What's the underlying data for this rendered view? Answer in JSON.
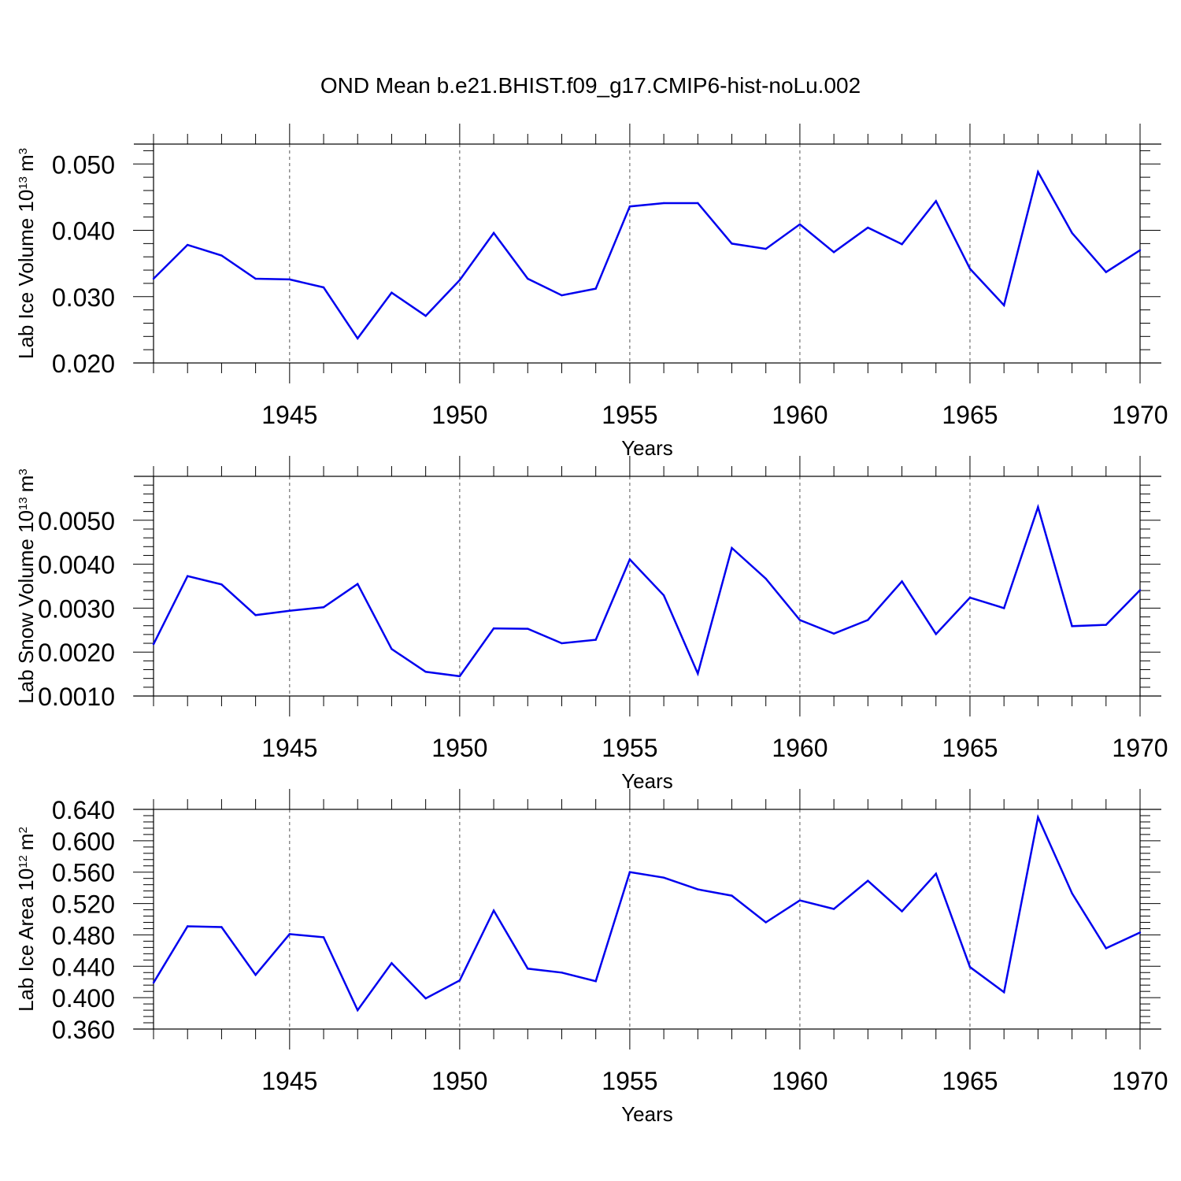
{
  "title": "OND Mean b.e21.BHIST.f09_g17.CMIP6-hist-noLu.002",
  "colors": {
    "line": "#0000ee",
    "axis": "#000000",
    "grid": "#555555",
    "background": "#ffffff"
  },
  "chart_data": [
    {
      "type": "line",
      "ylabel": "Lab Ice Volume 10",
      "ylabel_exp": "13",
      "ylabel_unit": "m",
      "ylabel_unit_exp": "3",
      "xlabel": "Years",
      "xlim": [
        1941,
        1970
      ],
      "ylim": [
        0.02,
        0.053
      ],
      "yticks": [
        "0.020",
        "0.030",
        "0.040",
        "0.050"
      ],
      "yticks_values": [
        0.02,
        0.03,
        0.04,
        0.05
      ],
      "xticks": [
        "1945",
        "1950",
        "1955",
        "1960",
        "1965",
        "1970"
      ],
      "xticks_values": [
        1945,
        1950,
        1955,
        1960,
        1965,
        1970
      ],
      "grid": "dashed vertical at 5-year ticks",
      "x": [
        1941,
        1942,
        1943,
        1944,
        1945,
        1946,
        1947,
        1948,
        1949,
        1950,
        1951,
        1952,
        1953,
        1954,
        1955,
        1956,
        1957,
        1958,
        1959,
        1960,
        1961,
        1962,
        1963,
        1964,
        1965,
        1966,
        1967,
        1968,
        1969,
        1970
      ],
      "values": [
        0.0327,
        0.0378,
        0.0362,
        0.0327,
        0.0326,
        0.0314,
        0.0237,
        0.0306,
        0.0271,
        0.0325,
        0.0396,
        0.0327,
        0.0302,
        0.0312,
        0.0436,
        0.0441,
        0.0441,
        0.038,
        0.0372,
        0.0409,
        0.0367,
        0.0404,
        0.0379,
        0.0444,
        0.0342,
        0.0287,
        0.0488,
        0.0396,
        0.0337,
        0.037
      ]
    },
    {
      "type": "line",
      "ylabel": "Lab Snow Volume 10",
      "ylabel_exp": "13",
      "ylabel_unit": "m",
      "ylabel_unit_exp": "3",
      "xlabel": "Years",
      "xlim": [
        1941,
        1970
      ],
      "ylim": [
        0.001,
        0.006
      ],
      "yticks": [
        "0.0010",
        "0.0020",
        "0.0030",
        "0.0040",
        "0.0050"
      ],
      "yticks_values": [
        0.001,
        0.002,
        0.003,
        0.004,
        0.005
      ],
      "xticks": [
        "1945",
        "1950",
        "1955",
        "1960",
        "1965",
        "1970"
      ],
      "xticks_values": [
        1945,
        1950,
        1955,
        1960,
        1965,
        1970
      ],
      "grid": "dashed vertical at 5-year ticks",
      "x": [
        1941,
        1942,
        1943,
        1944,
        1945,
        1946,
        1947,
        1948,
        1949,
        1950,
        1951,
        1952,
        1953,
        1954,
        1955,
        1956,
        1957,
        1958,
        1959,
        1960,
        1961,
        1962,
        1963,
        1964,
        1965,
        1966,
        1967,
        1968,
        1969,
        1970
      ],
      "values": [
        0.00218,
        0.00373,
        0.00354,
        0.00284,
        0.00294,
        0.00302,
        0.00355,
        0.00207,
        0.00155,
        0.00145,
        0.00254,
        0.00253,
        0.0022,
        0.00228,
        0.00411,
        0.00329,
        0.00151,
        0.00437,
        0.00367,
        0.00273,
        0.00242,
        0.00273,
        0.00361,
        0.00241,
        0.00324,
        0.003,
        0.0053,
        0.00259,
        0.00262,
        0.00341
      ]
    },
    {
      "type": "line",
      "ylabel": "Lab Ice Area 10",
      "ylabel_exp": "12",
      "ylabel_unit": "m",
      "ylabel_unit_exp": "2",
      "xlabel": "Years",
      "xlim": [
        1941,
        1970
      ],
      "ylim": [
        0.36,
        0.64
      ],
      "yticks": [
        "0.360",
        "0.400",
        "0.440",
        "0.480",
        "0.520",
        "0.560",
        "0.600",
        "0.640"
      ],
      "yticks_values": [
        0.36,
        0.4,
        0.44,
        0.48,
        0.52,
        0.56,
        0.6,
        0.64
      ],
      "xticks": [
        "1945",
        "1950",
        "1955",
        "1960",
        "1965",
        "1970"
      ],
      "xticks_values": [
        1945,
        1950,
        1955,
        1960,
        1965,
        1970
      ],
      "grid": "dashed vertical at 5-year ticks",
      "x": [
        1941,
        1942,
        1943,
        1944,
        1945,
        1946,
        1947,
        1948,
        1949,
        1950,
        1951,
        1952,
        1953,
        1954,
        1955,
        1956,
        1957,
        1958,
        1959,
        1960,
        1961,
        1962,
        1963,
        1964,
        1965,
        1966,
        1967,
        1968,
        1969,
        1970
      ],
      "values": [
        0.419,
        0.491,
        0.49,
        0.429,
        0.481,
        0.477,
        0.384,
        0.444,
        0.399,
        0.422,
        0.511,
        0.437,
        0.432,
        0.421,
        0.56,
        0.553,
        0.538,
        0.53,
        0.496,
        0.524,
        0.513,
        0.549,
        0.51,
        0.558,
        0.439,
        0.407,
        0.63,
        0.533,
        0.463,
        0.483
      ]
    }
  ]
}
